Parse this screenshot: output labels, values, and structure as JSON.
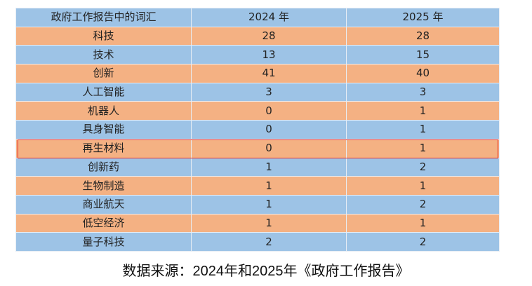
{
  "table": {
    "headers": [
      "政府工作报告中的词汇",
      "2024 年",
      "2025 年"
    ],
    "rows": [
      [
        "科技",
        "28",
        "28"
      ],
      [
        "技术",
        "13",
        "15"
      ],
      [
        "创新",
        "41",
        "40"
      ],
      [
        "人工智能",
        "3",
        "3"
      ],
      [
        "机器人",
        "0",
        "1"
      ],
      [
        "具身智能",
        "0",
        "1"
      ],
      [
        "再生材料",
        "0",
        "1"
      ],
      [
        "创新药",
        "1",
        "2"
      ],
      [
        "生物制造",
        "1",
        "1"
      ],
      [
        "商业航天",
        "1",
        "2"
      ],
      [
        "低空经济",
        "1",
        "1"
      ],
      [
        "量子科技",
        "2",
        "2"
      ]
    ],
    "highlighted_row": "再生材料",
    "colors": {
      "blue": "#9dc3e6",
      "orange": "#f4b183",
      "highlight": "#e8302a"
    }
  },
  "caption": "数据来源：2024年和2025年《政府工作报告》"
}
